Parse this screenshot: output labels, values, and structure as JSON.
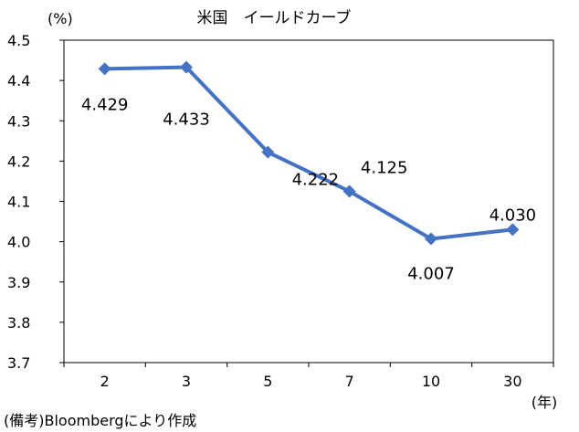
{
  "chart_data": {
    "type": "line",
    "title": "米国　イールドカーブ",
    "ylabel": "(%)",
    "xlabel": "(年)",
    "categories": [
      "2",
      "3",
      "5",
      "7",
      "10",
      "30"
    ],
    "series": [
      {
        "values": [
          4.429,
          4.433,
          4.222,
          4.125,
          4.007,
          4.03
        ]
      }
    ],
    "data_labels": [
      "4.429",
      "4.433",
      "4.222",
      "4.125",
      "4.007",
      "4.030"
    ],
    "ylim": [
      3.7,
      4.5
    ],
    "yticks": [
      "3.7",
      "3.8",
      "3.9",
      "4.0",
      "4.1",
      "4.2",
      "4.3",
      "4.4",
      "4.5"
    ],
    "grid": false,
    "legend": "none",
    "colors": {
      "line": "#4472c4",
      "marker": "#4472c4",
      "axis": "#000000"
    }
  },
  "footer": {
    "source": "(備考)Bloombergにより作成"
  }
}
